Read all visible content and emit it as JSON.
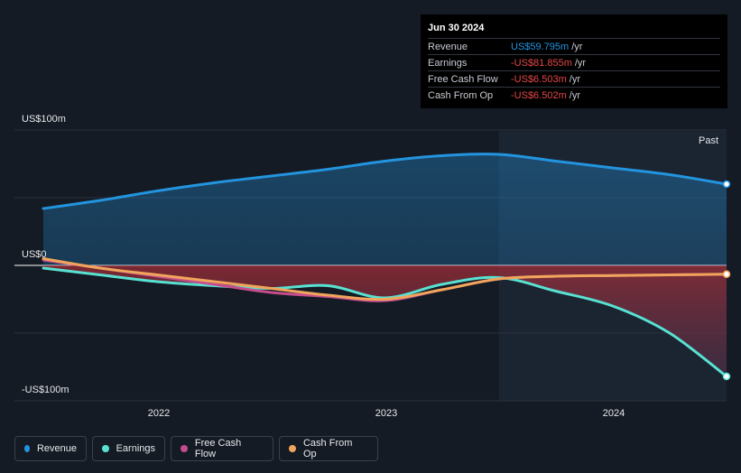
{
  "tooltip": {
    "date": "Jun 30 2024",
    "rows": [
      {
        "label": "Revenue",
        "value": "US$59.795m",
        "unit": "/yr",
        "color": "#2394df"
      },
      {
        "label": "Earnings",
        "value": "-US$81.855m",
        "unit": "/yr",
        "color": "#e64646"
      },
      {
        "label": "Free Cash Flow",
        "value": "-US$6.503m",
        "unit": "/yr",
        "color": "#e64646"
      },
      {
        "label": "Cash From Op",
        "value": "-US$6.502m",
        "unit": "/yr",
        "color": "#e64646"
      }
    ]
  },
  "past_label": "Past",
  "legend": [
    {
      "label": "Revenue",
      "color": "#2394df"
    },
    {
      "label": "Earnings",
      "color": "#58e1d2"
    },
    {
      "label": "Free Cash Flow",
      "color": "#c54d8e"
    },
    {
      "label": "Cash From Op",
      "color": "#f0a55a"
    }
  ],
  "chart_data": {
    "type": "line",
    "y_tick_labels": [
      "US$100m",
      "US$0",
      "-US$100m"
    ],
    "x_tick_labels": [
      "2022",
      "2023",
      "2024"
    ],
    "ylim": [
      -100,
      100
    ],
    "xlim": [
      2021.5,
      2024.5
    ],
    "past_region_start": 2023.5,
    "series": [
      {
        "name": "Revenue",
        "color": "#2394df",
        "x": [
          2021.5,
          2021.75,
          2022.0,
          2022.25,
          2022.5,
          2022.75,
          2023.0,
          2023.25,
          2023.5,
          2023.75,
          2024.0,
          2024.25,
          2024.5
        ],
        "y": [
          42,
          48,
          55,
          61,
          66,
          71,
          77,
          81,
          82,
          77,
          72,
          67,
          60
        ]
      },
      {
        "name": "Earnings",
        "color": "#58e1d2",
        "x": [
          2021.5,
          2021.75,
          2022.0,
          2022.25,
          2022.5,
          2022.75,
          2023.0,
          2023.25,
          2023.5,
          2023.75,
          2024.0,
          2024.25,
          2024.5
        ],
        "y": [
          -2,
          -7,
          -12,
          -15,
          -17,
          -15,
          -24,
          -14,
          -9,
          -19,
          -30,
          -50,
          -82
        ]
      },
      {
        "name": "Free Cash Flow",
        "color": "#c54d8e",
        "x": [
          2021.5,
          2021.75,
          2022.0,
          2022.25,
          2022.5,
          2022.75,
          2023.0,
          2023.25,
          2023.5,
          2023.75,
          2024.0,
          2024.25,
          2024.5
        ],
        "y": [
          4,
          -2,
          -8,
          -14,
          -20,
          -23,
          -26,
          -18,
          -10,
          -8,
          -7.5,
          -7,
          -6.5
        ]
      },
      {
        "name": "Cash From Op",
        "color": "#f0a55a",
        "x": [
          2021.5,
          2021.75,
          2022.0,
          2022.25,
          2022.5,
          2022.75,
          2023.0,
          2023.25,
          2023.5,
          2023.75,
          2024.0,
          2024.25,
          2024.5
        ],
        "y": [
          5,
          -2,
          -7,
          -12,
          -17,
          -22,
          -25,
          -18,
          -10,
          -8,
          -7.5,
          -7,
          -6.5
        ]
      }
    ]
  }
}
